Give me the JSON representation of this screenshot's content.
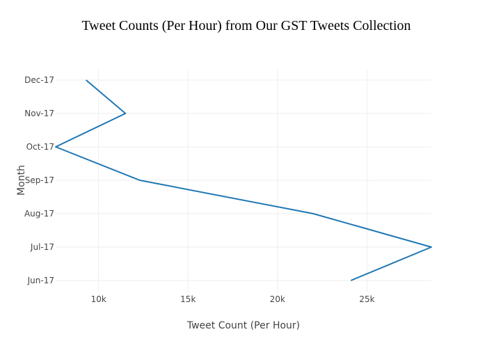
{
  "chart_data": {
    "type": "line",
    "orientation": "horizontal",
    "title": "Tweet Counts (Per Hour) from Our GST Tweets Collection",
    "xlabel": "Tweet Count (Per Hour)",
    "ylabel": "Month",
    "xlim": [
      7600,
      28600
    ],
    "x_ticks": [
      10000,
      15000,
      20000,
      25000
    ],
    "x_tick_labels": [
      "10k",
      "15k",
      "20k",
      "25k"
    ],
    "categories": [
      "Jun-17",
      "Jul-17",
      "Aug-17",
      "Sep-17",
      "Oct-17",
      "Nov-17",
      "Dec-17"
    ],
    "series": [
      {
        "color": "#1f77b4",
        "values": [
          24100,
          28600,
          22000,
          12300,
          7600,
          11500,
          9300
        ]
      }
    ],
    "grid": true,
    "legend": "none"
  }
}
